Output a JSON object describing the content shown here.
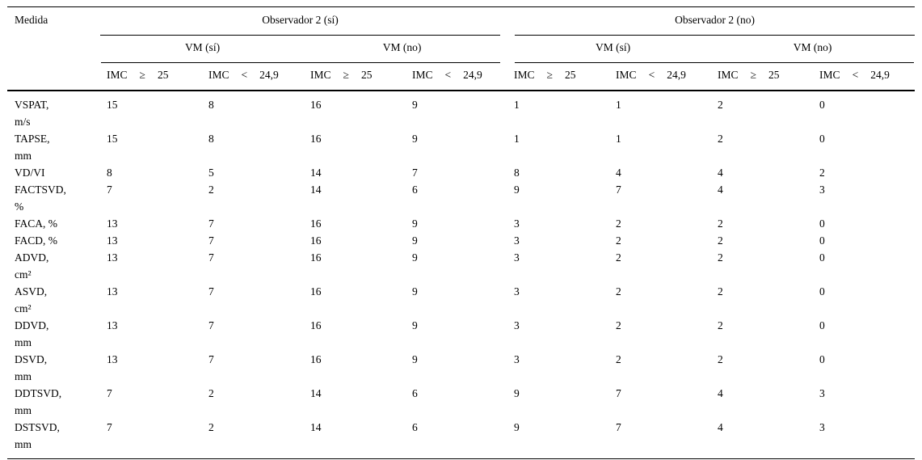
{
  "table": {
    "measure_header": "Medida",
    "observer_groups": [
      {
        "label": "Observador 2 (sí)"
      },
      {
        "label": "Observador 2 (no)"
      }
    ],
    "vm_groups": [
      {
        "label": "VM (sí)"
      },
      {
        "label": "VM (no)"
      },
      {
        "label": "VM (sí)"
      },
      {
        "label": "VM (no)"
      }
    ],
    "imc_headers": [
      {
        "t1": "IMC",
        "op": "≥",
        "t2": "25"
      },
      {
        "t1": "IMC",
        "op": "<",
        "t2": "24,9"
      },
      {
        "t1": "IMC",
        "op": "≥",
        "t2": "25"
      },
      {
        "t1": "IMC",
        "op": "<",
        "t2": "24,9"
      },
      {
        "t1": "IMC",
        "op": "≥",
        "t2": "25"
      },
      {
        "t1": "IMC",
        "op": "<",
        "t2": "24,9"
      },
      {
        "t1": "IMC",
        "op": "≥",
        "t2": "25"
      },
      {
        "t1": "IMC",
        "op": "<",
        "t2": "24,9"
      }
    ],
    "rows": [
      {
        "label": "VSPAT,\nm/s",
        "values": [
          15,
          8,
          16,
          9,
          1,
          1,
          2,
          0
        ]
      },
      {
        "label": "TAPSE,\nmm",
        "values": [
          15,
          8,
          16,
          9,
          1,
          1,
          2,
          0
        ]
      },
      {
        "label": "VD/VI",
        "values": [
          8,
          5,
          14,
          7,
          8,
          4,
          4,
          2
        ]
      },
      {
        "label": "FACTSVD,\n%",
        "values": [
          7,
          2,
          14,
          6,
          9,
          7,
          4,
          3
        ]
      },
      {
        "label": "FACA, %",
        "values": [
          13,
          7,
          16,
          9,
          3,
          2,
          2,
          0
        ]
      },
      {
        "label": "FACD, %",
        "values": [
          13,
          7,
          16,
          9,
          3,
          2,
          2,
          0
        ]
      },
      {
        "label": "ADVD,\ncm²",
        "values": [
          13,
          7,
          16,
          9,
          3,
          2,
          2,
          0
        ]
      },
      {
        "label": "ASVD,\ncm²",
        "values": [
          13,
          7,
          16,
          9,
          3,
          2,
          2,
          0
        ]
      },
      {
        "label": "DDVD,\nmm",
        "values": [
          13,
          7,
          16,
          9,
          3,
          2,
          2,
          0
        ]
      },
      {
        "label": "DSVD,\nmm",
        "values": [
          13,
          7,
          16,
          9,
          3,
          2,
          2,
          0
        ]
      },
      {
        "label": "DDTSVD,\nmm",
        "values": [
          7,
          2,
          14,
          6,
          9,
          7,
          4,
          3
        ]
      },
      {
        "label": "DSTSVD,\nmm",
        "values": [
          7,
          2,
          14,
          6,
          9,
          7,
          4,
          3
        ]
      }
    ]
  }
}
